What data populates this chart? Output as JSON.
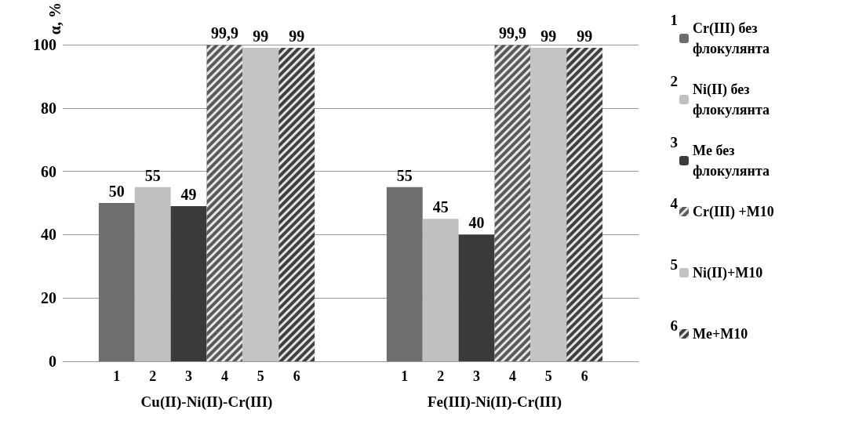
{
  "chart_data": {
    "type": "bar",
    "ylabel": "α, %",
    "categories": [
      "Cu(II)-Ni(II)-Cr(III)",
      "Fe(III)-Ni(II)-Cr(III)"
    ],
    "series": [
      {
        "name": "Cr(III) без флокулянта",
        "color": "#6e6e6e",
        "values": [
          50,
          55
        ],
        "value_labels": [
          "50",
          "55"
        ]
      },
      {
        "name": "Ni(II) без флокулянта",
        "color": "#c0c0c0",
        "values": [
          55,
          45
        ],
        "value_labels": [
          "55",
          "45"
        ]
      },
      {
        "name": "Me без флокулянта",
        "color": "#3a3a3a",
        "values": [
          49,
          40
        ],
        "value_labels": [
          "49",
          "40"
        ]
      },
      {
        "name": "Cr(III) +M10",
        "color": "#5a5a5a",
        "values": [
          99.9,
          99.9
        ],
        "value_labels": [
          "99,9",
          "99,9"
        ]
      },
      {
        "name": "Ni(II)+M10",
        "color": "#c4c4c4",
        "values": [
          99,
          99
        ],
        "value_labels": [
          "99",
          "99"
        ]
      },
      {
        "name": "Me+M10",
        "color": "#404040",
        "values": [
          99,
          99
        ],
        "value_labels": [
          "99",
          "99"
        ]
      }
    ],
    "annotations": [
      "1",
      "2",
      "3",
      "4",
      "5",
      "6"
    ],
    "ylim": [
      0,
      100
    ],
    "yticks": [
      0,
      20,
      40,
      60,
      80,
      100
    ],
    "grid": "y",
    "legend": "right"
  }
}
